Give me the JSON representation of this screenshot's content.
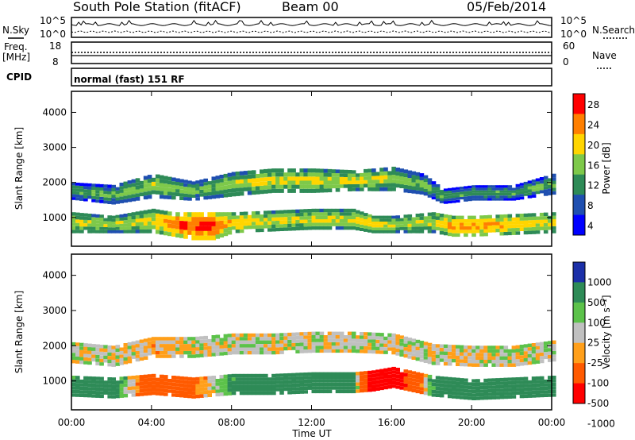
{
  "header": {
    "title": "South Pole Station (fitACF)",
    "beam": "Beam 00",
    "date": "05/Feb/2014"
  },
  "noise_panel": {
    "left_label": "N.Sky",
    "right_label": "N.Search",
    "left_ticks": [
      "10^5",
      "10^0"
    ],
    "right_ticks": [
      "10^5",
      "10^0"
    ]
  },
  "freq_panel": {
    "left_label_1": "Freq.",
    "left_label_2": "[MHz]",
    "right_label": "Nave",
    "left_ticks": [
      "18",
      "8"
    ],
    "right_ticks": [
      "60",
      "0"
    ]
  },
  "cpid_panel": {
    "label": "CPID",
    "text": "normal (fast) 151 RF"
  },
  "power_colorbar": {
    "label": "Power [dB]",
    "ticks": [
      "28",
      "24",
      "20",
      "16",
      "12",
      "8",
      "4"
    ],
    "colors": [
      "#ff0000",
      "#ff7f00",
      "#ffd500",
      "#7ec94a",
      "#2e8b57",
      "#1f4fb0",
      "#0000ff"
    ]
  },
  "velocity_colorbar": {
    "label": "Velocity [m s⁻¹]",
    "ticks": [
      "1000",
      "500",
      "100",
      "25",
      "-25",
      "-100",
      "-500",
      "-1000"
    ],
    "colors": [
      "#1b2fa8",
      "#2e8b57",
      "#5cc24a",
      "#c0c0c0",
      "#ff9f1a",
      "#ff5a00",
      "#ff0000"
    ]
  },
  "chart_data": [
    {
      "type": "heatmap",
      "panel": "power",
      "ylabel": "Slant Range [km]",
      "xlabel": "Time UT",
      "x_ticks": [
        "00:00",
        "04:00",
        "08:00",
        "12:00",
        "16:00",
        "20:00",
        "00:00"
      ],
      "y_ticks": [
        "1000",
        "2000",
        "3000",
        "4000"
      ],
      "xlim_hours": [
        0,
        24
      ],
      "ylim_km": [
        180,
        4600
      ],
      "bands": [
        {
          "name": "upper band",
          "x_hours": [
            0,
            2,
            4,
            6,
            8,
            10,
            12,
            14,
            16,
            17.5,
            18.5,
            20,
            22,
            24
          ],
          "range_km": [
            1750,
            1650,
            1900,
            1750,
            1950,
            2050,
            2050,
            2050,
            2100,
            1950,
            1600,
            1700,
            1700,
            1950
          ],
          "width_km": [
            250,
            280,
            350,
            280,
            350,
            350,
            350,
            300,
            350,
            300,
            220,
            220,
            220,
            300
          ],
          "power_db": [
            14,
            16,
            18,
            16,
            18,
            20,
            20,
            20,
            18,
            16,
            14,
            14,
            14,
            16
          ]
        },
        {
          "name": "lower band",
          "x_hours": [
            0,
            2,
            4,
            5,
            6,
            7,
            8,
            10,
            12,
            14,
            15,
            16,
            18,
            19,
            20,
            22,
            24
          ],
          "range_km": [
            850,
            800,
            900,
            800,
            750,
            750,
            850,
            900,
            950,
            950,
            800,
            800,
            850,
            750,
            750,
            800,
            850
          ],
          "width_km": [
            300,
            250,
            350,
            350,
            400,
            400,
            300,
            300,
            300,
            300,
            250,
            250,
            300,
            300,
            300,
            300,
            300
          ],
          "power_db": [
            20,
            18,
            20,
            26,
            28,
            28,
            22,
            20,
            20,
            20,
            22,
            18,
            20,
            24,
            24,
            22,
            20
          ]
        }
      ]
    },
    {
      "type": "heatmap",
      "panel": "velocity",
      "ylabel": "Slant Range [km]",
      "xlabel": "Time UT",
      "x_ticks": [
        "00:00",
        "04:00",
        "08:00",
        "12:00",
        "16:00",
        "20:00",
        "00:00"
      ],
      "y_ticks": [
        "1000",
        "2000",
        "3000",
        "4000"
      ],
      "xlim_hours": [
        0,
        24
      ],
      "ylim_km": [
        180,
        4600
      ],
      "bands": [
        {
          "name": "upper band",
          "x_hours": [
            0,
            2,
            4,
            6,
            8,
            10,
            12,
            14,
            16,
            18,
            20,
            22,
            24
          ],
          "range_km": [
            1800,
            1700,
            1950,
            1950,
            2050,
            2050,
            2100,
            2100,
            2050,
            1750,
            1700,
            1700,
            1850
          ],
          "velocity_ms": [
            0,
            0,
            -50,
            0,
            0,
            0,
            0,
            0,
            0,
            0,
            0,
            0,
            0
          ]
        },
        {
          "name": "lower band",
          "x_hours": [
            0,
            2,
            4,
            5,
            6,
            8,
            10,
            12,
            14,
            15,
            16,
            18,
            20,
            22,
            24
          ],
          "range_km": [
            850,
            800,
            900,
            850,
            800,
            900,
            900,
            950,
            950,
            1000,
            1100,
            850,
            750,
            800,
            850
          ],
          "velocity_ms": [
            150,
            200,
            -300,
            -200,
            -150,
            150,
            200,
            150,
            200,
            -800,
            -800,
            150,
            200,
            200,
            200
          ]
        }
      ]
    }
  ]
}
